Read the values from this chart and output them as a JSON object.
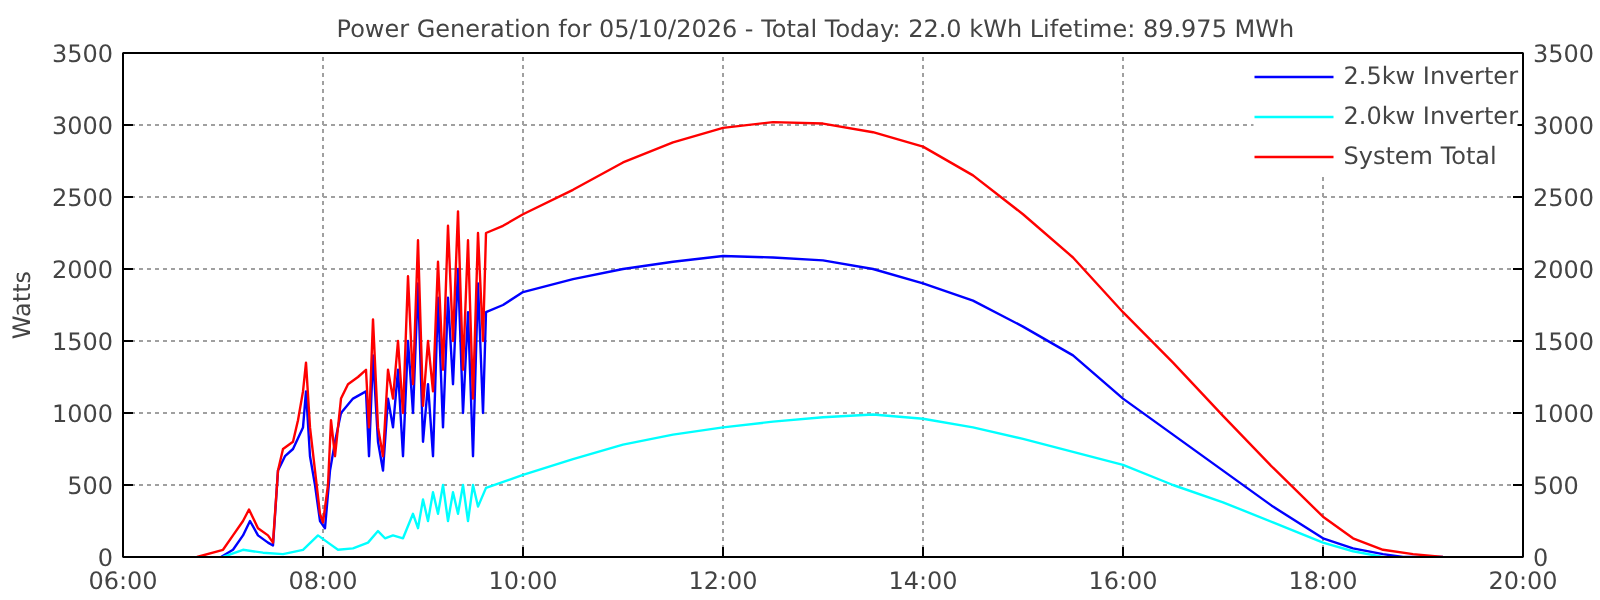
{
  "chart_data": {
    "type": "line",
    "title": "Power Generation for 05/10/2026 - Total Today: 22.0 kWh   Lifetime: 89.975 MWh",
    "ylabel": "Watts",
    "xlim": [
      6,
      20
    ],
    "xticks": [
      {
        "value": 6,
        "label": "06:00"
      },
      {
        "value": 8,
        "label": "08:00"
      },
      {
        "value": 10,
        "label": "10:00"
      },
      {
        "value": 12,
        "label": "12:00"
      },
      {
        "value": 14,
        "label": "14:00"
      },
      {
        "value": 16,
        "label": "16:00"
      },
      {
        "value": 18,
        "label": "18:00"
      },
      {
        "value": 20,
        "label": "20:00"
      }
    ],
    "ylim": [
      0,
      3500
    ],
    "yticks": [
      0,
      500,
      1000,
      1500,
      2000,
      2500,
      3000,
      3500
    ],
    "y2lim": [
      0,
      3500
    ],
    "y2ticks": [
      0,
      500,
      1000,
      1500,
      2000,
      2500,
      3000,
      3500
    ],
    "grid": true,
    "legend": "top right",
    "line_style": "solid",
    "series": [
      {
        "name": "2.5kw Inverter",
        "color": "#0000ff",
        "x": [
          6.98,
          7.1,
          7.2,
          7.27,
          7.35,
          7.45,
          7.5,
          7.55,
          7.62,
          7.7,
          7.8,
          7.83,
          7.87,
          7.92,
          7.97,
          8.02,
          8.07,
          8.12,
          8.18,
          8.3,
          8.43,
          8.46,
          8.5,
          8.55,
          8.6,
          8.65,
          8.7,
          8.75,
          8.8,
          8.85,
          8.9,
          8.95,
          9.0,
          9.05,
          9.1,
          9.15,
          9.2,
          9.25,
          9.3,
          9.35,
          9.4,
          9.45,
          9.5,
          9.55,
          9.6,
          9.63,
          9.8,
          10.0,
          10.5,
          11.0,
          11.5,
          12.0,
          12.5,
          13.0,
          13.5,
          14.0,
          14.5,
          15.0,
          15.5,
          16.0,
          16.5,
          17.0,
          17.5,
          18.0,
          18.3,
          18.6,
          18.8,
          19.2
        ],
        "values": [
          0,
          50,
          150,
          250,
          150,
          100,
          80,
          600,
          700,
          750,
          900,
          1150,
          700,
          500,
          250,
          200,
          600,
          800,
          1000,
          1100,
          1150,
          700,
          1400,
          800,
          600,
          1100,
          900,
          1300,
          700,
          1500,
          1000,
          1900,
          800,
          1200,
          700,
          1800,
          900,
          1800,
          1200,
          2000,
          1000,
          1700,
          700,
          1900,
          1000,
          1700,
          1750,
          1840,
          1930,
          2000,
          2050,
          2090,
          2080,
          2060,
          2000,
          1900,
          1780,
          1600,
          1400,
          1100,
          850,
          600,
          350,
          130,
          60,
          20,
          0,
          0
        ]
      },
      {
        "name": "2.0kw Inverter",
        "color": "#00ffff",
        "x": [
          7.0,
          7.2,
          7.4,
          7.6,
          7.8,
          7.95,
          8.05,
          8.15,
          8.3,
          8.45,
          8.55,
          8.62,
          8.7,
          8.8,
          8.9,
          8.95,
          9.0,
          9.05,
          9.1,
          9.15,
          9.2,
          9.25,
          9.3,
          9.35,
          9.4,
          9.45,
          9.5,
          9.55,
          9.63,
          10.0,
          10.5,
          11.0,
          11.5,
          12.0,
          12.5,
          13.0,
          13.5,
          14.0,
          14.5,
          15.0,
          15.5,
          16.0,
          16.5,
          17.0,
          17.5,
          18.0,
          18.3,
          18.6
        ],
        "values": [
          0,
          50,
          30,
          20,
          50,
          150,
          100,
          50,
          60,
          100,
          180,
          130,
          150,
          130,
          300,
          200,
          400,
          250,
          450,
          300,
          500,
          250,
          450,
          300,
          500,
          250,
          500,
          350,
          480,
          570,
          680,
          780,
          850,
          900,
          940,
          970,
          990,
          960,
          900,
          820,
          730,
          640,
          500,
          380,
          240,
          100,
          40,
          0
        ]
      },
      {
        "name": "System Total",
        "color": "#ff0000",
        "x": [
          6.74,
          7.0,
          7.1,
          7.2,
          7.26,
          7.35,
          7.45,
          7.5,
          7.55,
          7.6,
          7.7,
          7.75,
          7.8,
          7.83,
          7.87,
          7.92,
          7.97,
          8.0,
          8.05,
          8.08,
          8.12,
          8.18,
          8.25,
          8.35,
          8.43,
          8.46,
          8.5,
          8.55,
          8.6,
          8.65,
          8.7,
          8.75,
          8.8,
          8.85,
          8.9,
          8.95,
          9.0,
          9.05,
          9.1,
          9.15,
          9.2,
          9.25,
          9.3,
          9.35,
          9.4,
          9.45,
          9.5,
          9.55,
          9.6,
          9.63,
          9.8,
          10.0,
          10.5,
          11.0,
          11.5,
          12.0,
          12.5,
          13.0,
          13.5,
          14.0,
          14.5,
          15.0,
          15.5,
          16.0,
          16.5,
          17.0,
          17.5,
          18.0,
          18.3,
          18.6,
          18.9,
          19.2
        ],
        "values": [
          0,
          50,
          150,
          250,
          330,
          200,
          150,
          100,
          600,
          750,
          800,
          950,
          1150,
          1350,
          900,
          600,
          300,
          240,
          500,
          950,
          700,
          1100,
          1200,
          1250,
          1300,
          900,
          1650,
          900,
          700,
          1300,
          1100,
          1500,
          1000,
          1950,
          1200,
          2200,
          1050,
          1500,
          1150,
          2050,
          1300,
          2300,
          1500,
          2400,
          1300,
          2200,
          1100,
          2250,
          1500,
          2250,
          2300,
          2380,
          2550,
          2740,
          2880,
          2980,
          3020,
          3010,
          2950,
          2850,
          2650,
          2380,
          2080,
          1700,
          1350,
          980,
          620,
          280,
          130,
          50,
          20,
          0
        ]
      }
    ]
  }
}
